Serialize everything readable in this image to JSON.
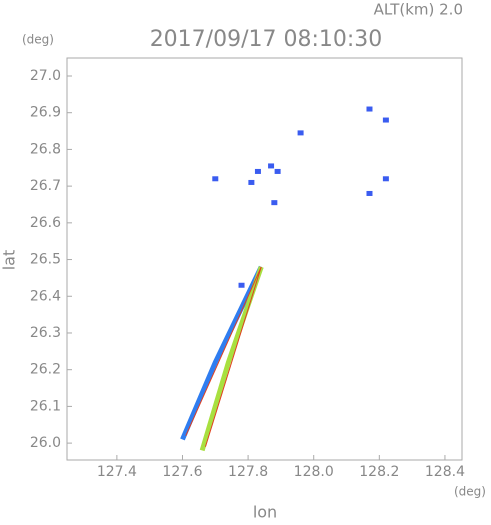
{
  "chart_data": {
    "type": "scatter",
    "title": "2017/09/17 08:10:30",
    "subtitle": "ALT(km) 2.0",
    "x_label": "lon",
    "y_label": "lat",
    "x_unit": "(deg)",
    "y_unit": "(deg)",
    "xlim": [
      127.248,
      128.452
    ],
    "ylim": [
      25.954,
      27.049
    ],
    "xticks": [
      127.4,
      127.6,
      127.8,
      {
        "value": 128,
        "label": "128.0"
      },
      128.2,
      128.4
    ],
    "yticks": [
      {
        "value": 26,
        "label": "26.0"
      },
      26.1,
      26.2,
      26.3,
      26.4,
      26.5,
      26.6,
      26.7,
      26.8,
      26.9,
      {
        "value": 27,
        "label": "27.0"
      }
    ],
    "series": [
      {
        "color": "#3a5cf0",
        "style": "points",
        "x": [
          127.96,
          128.17,
          128.22,
          127.87,
          127.89,
          128.22,
          128.17,
          127.83,
          127.7,
          127.78,
          127.88,
          127.81
        ],
        "values": [
          26.845,
          26.91,
          26.88,
          26.755,
          26.74,
          26.72,
          26.68,
          26.74,
          26.72,
          26.43,
          26.655,
          26.71
        ]
      },
      {
        "color": "#2f7df0",
        "style": "line",
        "x": [
          127.6,
          127.7,
          127.84
        ],
        "values": [
          26.01,
          26.22,
          26.48
        ]
      },
      {
        "color": "#a8e040",
        "style": "line",
        "x": [
          127.66,
          127.74,
          127.84
        ],
        "values": [
          25.98,
          26.22,
          26.48
        ]
      },
      {
        "color": "#e04020",
        "style": "thin",
        "x": [
          127.61,
          127.84
        ],
        "values": [
          26.02,
          26.48
        ]
      },
      {
        "color": "#e04020",
        "style": "thin",
        "x": [
          127.67,
          127.84
        ],
        "values": [
          25.99,
          26.48
        ]
      }
    ]
  }
}
